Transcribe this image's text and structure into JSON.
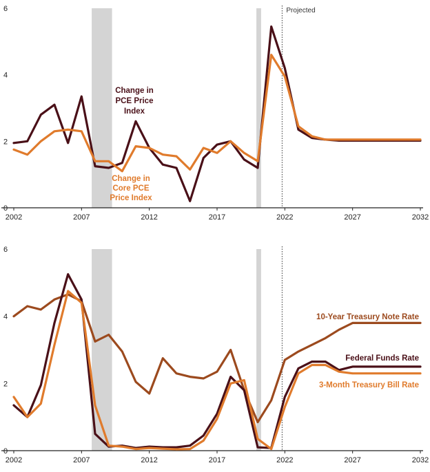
{
  "colors": {
    "pce": "#4a1018",
    "core": "#e07b2c",
    "treasury10": "#9c4a1e",
    "fedfunds": "#4a1018",
    "tbill": "#e07b2c",
    "recession": "#cccccc",
    "axis": "#222222"
  },
  "projected_label": "Projected",
  "chart_data": [
    {
      "type": "line",
      "xlim": [
        2002,
        2032
      ],
      "ylim": [
        0,
        6
      ],
      "x_ticks": [
        2002,
        2007,
        2012,
        2017,
        2022,
        2027,
        2032
      ],
      "y_ticks": [
        0,
        2,
        4,
        6
      ],
      "x_tick_labels": [
        "2002",
        "2007",
        "2012",
        "2017",
        "2022",
        "2027",
        "2032"
      ],
      "y_tick_labels": [
        "0",
        "2",
        "4",
        "6"
      ],
      "recessions": [
        [
          2007.75,
          2009.25
        ],
        [
          2019.9,
          2020.25
        ]
      ],
      "projected_x": 2021.8,
      "grid": false,
      "series": [
        {
          "name": "Change in PCE Price Index",
          "label_lines": [
            "Change in",
            "PCE Price",
            "Index"
          ],
          "color_key": "pce",
          "x": [
            2002,
            2003,
            2004,
            2005,
            2006,
            2007,
            2008,
            2009,
            2010,
            2011,
            2012,
            2013,
            2014,
            2015,
            2016,
            2017,
            2018,
            2019,
            2020,
            2021,
            2022,
            2023,
            2024,
            2025,
            2026,
            2027,
            2028,
            2029,
            2030,
            2031,
            2032
          ],
          "values": [
            1.95,
            2.0,
            2.8,
            3.1,
            1.95,
            3.35,
            1.25,
            1.2,
            1.35,
            2.6,
            1.8,
            1.3,
            1.2,
            0.2,
            1.5,
            1.9,
            2.0,
            1.45,
            1.2,
            5.45,
            4.2,
            2.35,
            2.1,
            2.05,
            2.02,
            2.02,
            2.02,
            2.02,
            2.02,
            2.02,
            2.02
          ]
        },
        {
          "name": "Change in Core PCE Price Index",
          "label_lines": [
            "Change in",
            "Core PCE",
            "Price Index"
          ],
          "color_key": "core",
          "x": [
            2002,
            2003,
            2004,
            2005,
            2006,
            2007,
            2008,
            2009,
            2010,
            2011,
            2012,
            2013,
            2014,
            2015,
            2016,
            2017,
            2018,
            2019,
            2020,
            2021,
            2022,
            2023,
            2024,
            2025,
            2026,
            2027,
            2028,
            2029,
            2030,
            2031,
            2032
          ],
          "values": [
            1.75,
            1.6,
            2.0,
            2.3,
            2.35,
            2.3,
            1.4,
            1.4,
            1.1,
            1.85,
            1.8,
            1.6,
            1.55,
            1.15,
            1.8,
            1.65,
            2.0,
            1.65,
            1.4,
            4.6,
            3.95,
            2.45,
            2.15,
            2.05,
            2.05,
            2.05,
            2.05,
            2.05,
            2.05,
            2.05,
            2.05
          ]
        }
      ]
    },
    {
      "type": "line",
      "xlim": [
        2002,
        2032
      ],
      "ylim": [
        0,
        6
      ],
      "x_ticks": [
        2002,
        2007,
        2012,
        2017,
        2022,
        2027,
        2032
      ],
      "y_ticks": [
        0,
        2,
        4,
        6
      ],
      "x_tick_labels": [
        "2002",
        "2007",
        "2012",
        "2017",
        "2022",
        "2027",
        "2032"
      ],
      "y_tick_labels": [
        "0",
        "2",
        "4",
        "6"
      ],
      "recessions": [
        [
          2007.75,
          2009.25
        ],
        [
          2019.9,
          2020.25
        ]
      ],
      "projected_x": 2021.8,
      "grid": false,
      "series": [
        {
          "name": "10-Year Treasury Note Rate",
          "label_lines": [
            "10-Year Treasury Note Rate"
          ],
          "color_key": "treasury10",
          "x": [
            2002,
            2003,
            2004,
            2005,
            2006,
            2007,
            2008,
            2009,
            2010,
            2011,
            2012,
            2013,
            2014,
            2015,
            2016,
            2017,
            2018,
            2019,
            2020,
            2021,
            2022,
            2023,
            2024,
            2025,
            2026,
            2027,
            2028,
            2029,
            2030,
            2031,
            2032
          ],
          "values": [
            4.0,
            4.3,
            4.2,
            4.5,
            4.65,
            4.45,
            3.25,
            3.45,
            2.95,
            2.05,
            1.7,
            2.75,
            2.3,
            2.2,
            2.15,
            2.35,
            3.0,
            1.8,
            0.85,
            1.5,
            2.7,
            2.95,
            3.15,
            3.35,
            3.6,
            3.8,
            3.8,
            3.8,
            3.8,
            3.8,
            3.8
          ]
        },
        {
          "name": "Federal Funds Rate",
          "label_lines": [
            "Federal Funds Rate"
          ],
          "color_key": "fedfunds",
          "x": [
            2002,
            2003,
            2004,
            2005,
            2006,
            2007,
            2008,
            2009,
            2010,
            2011,
            2012,
            2013,
            2014,
            2015,
            2016,
            2017,
            2018,
            2019,
            2020,
            2021,
            2022,
            2023,
            2024,
            2025,
            2026,
            2027,
            2028,
            2029,
            2030,
            2031,
            2032
          ],
          "values": [
            1.35,
            1.0,
            1.95,
            3.8,
            5.25,
            4.5,
            0.5,
            0.12,
            0.15,
            0.08,
            0.12,
            0.1,
            0.1,
            0.15,
            0.45,
            1.1,
            2.2,
            1.8,
            0.1,
            0.08,
            1.6,
            2.45,
            2.65,
            2.65,
            2.4,
            2.5,
            2.5,
            2.5,
            2.5,
            2.5,
            2.5
          ]
        },
        {
          "name": "3-Month Treasury Bill Rate",
          "label_lines": [
            "3-Month Treasury Bill Rate"
          ],
          "color_key": "tbill",
          "x": [
            2002,
            2003,
            2004,
            2005,
            2006,
            2007,
            2008,
            2009,
            2010,
            2011,
            2012,
            2013,
            2014,
            2015,
            2016,
            2017,
            2018,
            2019,
            2020,
            2021,
            2022,
            2023,
            2024,
            2025,
            2026,
            2027,
            2028,
            2029,
            2030,
            2031,
            2032
          ],
          "values": [
            1.6,
            1.0,
            1.4,
            3.15,
            4.75,
            4.4,
            1.35,
            0.15,
            0.12,
            0.05,
            0.08,
            0.06,
            0.04,
            0.05,
            0.3,
            0.95,
            2.0,
            2.1,
            0.35,
            0.05,
            1.3,
            2.3,
            2.55,
            2.55,
            2.35,
            2.3,
            2.3,
            2.3,
            2.3,
            2.3,
            2.3
          ]
        }
      ]
    }
  ]
}
